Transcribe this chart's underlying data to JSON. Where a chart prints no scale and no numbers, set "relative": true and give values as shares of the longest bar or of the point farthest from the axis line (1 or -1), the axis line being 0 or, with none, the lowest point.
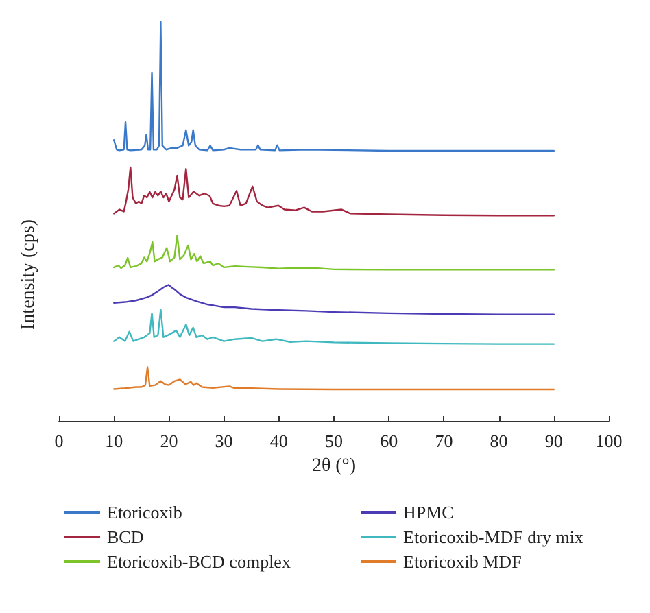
{
  "chart_data": {
    "type": "line",
    "relative": true,
    "xlabel": "2θ (°)",
    "ylabel": "Intensity (cps)",
    "xlim": [
      0,
      100
    ],
    "xticks": [
      0,
      10,
      20,
      30,
      40,
      50,
      60,
      70,
      80,
      90,
      100
    ],
    "grid": false,
    "legend": "bottom",
    "marker": "none",
    "line_style": "solid",
    "series": [
      {
        "name": "Etoricoxib",
        "color": "#3a78c9",
        "x": [
          10,
          10.5,
          11,
          11.8,
          12.1,
          12.4,
          13,
          15,
          15.6,
          15.9,
          16.2,
          16.6,
          16.9,
          17.2,
          17.8,
          18.2,
          18.5,
          18.8,
          19.5,
          20.5,
          21.5,
          22.5,
          23.1,
          23.6,
          24.1,
          24.4,
          24.8,
          25.5,
          27,
          27.5,
          28,
          30,
          31,
          33,
          35.8,
          36.2,
          36.6,
          39.3,
          39.7,
          40.1,
          45,
          50,
          60,
          70,
          80,
          90
        ],
        "values": [
          0.704,
          0.68,
          0.678,
          0.68,
          0.749,
          0.68,
          0.678,
          0.68,
          0.69,
          0.718,
          0.68,
          0.68,
          0.873,
          0.68,
          0.68,
          0.69,
          1,
          0.69,
          0.68,
          0.684,
          0.684,
          0.69,
          0.729,
          0.69,
          0.7,
          0.729,
          0.69,
          0.68,
          0.678,
          0.69,
          0.678,
          0.68,
          0.684,
          0.68,
          0.68,
          0.691,
          0.68,
          0.678,
          0.691,
          0.678,
          0.68,
          0.679,
          0.677,
          0.677,
          0.677,
          0.677
        ]
      },
      {
        "name": "BCD",
        "color": "#a3253f",
        "x": [
          10,
          11,
          11.8,
          12.2,
          12.6,
          13,
          13.4,
          14,
          14.5,
          15,
          15.5,
          16,
          16.5,
          17,
          17.5,
          18,
          18.5,
          19,
          19.5,
          20,
          21,
          21.5,
          22,
          22.5,
          23.1,
          23.6,
          24.5,
          25.5,
          26.5,
          27.4,
          28,
          29,
          30,
          31,
          32.3,
          33,
          34,
          35.2,
          36,
          37,
          38,
          39.9,
          41,
          43,
          44.6,
          46,
          48,
          51.4,
          53,
          60,
          70,
          80,
          90
        ],
        "values": [
          0.52,
          0.53,
          0.525,
          0.55,
          0.58,
          0.636,
          0.56,
          0.545,
          0.55,
          0.545,
          0.565,
          0.56,
          0.574,
          0.56,
          0.574,
          0.565,
          0.575,
          0.56,
          0.57,
          0.55,
          0.58,
          0.615,
          0.56,
          0.555,
          0.632,
          0.56,
          0.575,
          0.565,
          0.57,
          0.564,
          0.545,
          0.54,
          0.538,
          0.54,
          0.577,
          0.54,
          0.545,
          0.588,
          0.55,
          0.54,
          0.535,
          0.54,
          0.53,
          0.528,
          0.535,
          0.525,
          0.525,
          0.53,
          0.52,
          0.518,
          0.516,
          0.515,
          0.515
        ]
      },
      {
        "name": "Etoricoxib-BCD complex",
        "color": "#7cc42a",
        "x": [
          10,
          10.8,
          11.3,
          12,
          12.5,
          13,
          14,
          15,
          15.5,
          16,
          16.5,
          17,
          17.4,
          18,
          18.8,
          19.6,
          20.2,
          21,
          21.5,
          22,
          22.7,
          23.5,
          24,
          24.6,
          25.1,
          25.7,
          26.3,
          27.5,
          28,
          29,
          30,
          32,
          35,
          37,
          40,
          44,
          47,
          50,
          60,
          70,
          80,
          90
        ],
        "values": [
          0.385,
          0.39,
          0.383,
          0.39,
          0.409,
          0.385,
          0.388,
          0.395,
          0.41,
          0.4,
          0.42,
          0.448,
          0.4,
          0.405,
          0.41,
          0.434,
          0.4,
          0.41,
          0.465,
          0.405,
          0.415,
          0.44,
          0.405,
          0.419,
          0.4,
          0.413,
          0.395,
          0.4,
          0.39,
          0.395,
          0.385,
          0.388,
          0.386,
          0.385,
          0.382,
          0.384,
          0.383,
          0.38,
          0.379,
          0.379,
          0.379,
          0.379
        ]
      },
      {
        "name": "HPMC",
        "color": "#4b3bb5",
        "x": [
          10,
          12,
          14,
          16,
          17,
          18,
          19,
          19.9,
          21,
          22,
          23,
          25,
          27,
          30,
          32,
          35,
          40,
          45,
          50,
          60,
          70,
          80,
          90
        ],
        "values": [
          0.296,
          0.298,
          0.302,
          0.31,
          0.316,
          0.325,
          0.335,
          0.341,
          0.33,
          0.318,
          0.31,
          0.3,
          0.292,
          0.285,
          0.285,
          0.281,
          0.278,
          0.276,
          0.273,
          0.27,
          0.268,
          0.267,
          0.267
        ]
      },
      {
        "name": "Etoricoxib-MDF dry mix",
        "color": "#3fb8bf",
        "x": [
          10,
          11,
          12,
          12.8,
          13.5,
          14.5,
          15.5,
          16,
          16.5,
          16.9,
          17.3,
          18,
          18.5,
          19,
          19.8,
          20.5,
          21.3,
          22,
          23.1,
          23.7,
          24.4,
          25,
          26,
          27,
          28,
          30,
          32,
          35,
          37,
          39.5,
          42,
          45,
          50,
          60,
          70,
          80,
          90
        ],
        "values": [
          0.2,
          0.21,
          0.2,
          0.224,
          0.2,
          0.205,
          0.21,
          0.215,
          0.22,
          0.27,
          0.21,
          0.215,
          0.279,
          0.21,
          0.215,
          0.22,
          0.227,
          0.21,
          0.242,
          0.215,
          0.234,
          0.21,
          0.215,
          0.205,
          0.21,
          0.2,
          0.205,
          0.208,
          0.2,
          0.205,
          0.198,
          0.2,
          0.197,
          0.195,
          0.194,
          0.193,
          0.193
        ]
      },
      {
        "name": "Etoricoxib MDF",
        "color": "#e07b2a",
        "x": [
          10,
          12,
          14,
          15,
          15.7,
          16.1,
          16.5,
          17.5,
          18.5,
          19.3,
          20,
          21,
          22,
          23,
          24,
          24.5,
          25,
          26,
          28,
          31,
          32,
          35,
          40,
          50,
          60,
          70,
          80,
          90
        ],
        "values": [
          0.08,
          0.082,
          0.085,
          0.085,
          0.09,
          0.135,
          0.088,
          0.09,
          0.1,
          0.092,
          0.09,
          0.1,
          0.104,
          0.092,
          0.098,
          0.09,
          0.095,
          0.085,
          0.083,
          0.087,
          0.082,
          0.082,
          0.08,
          0.079,
          0.079,
          0.079,
          0.079,
          0.079
        ]
      }
    ]
  }
}
